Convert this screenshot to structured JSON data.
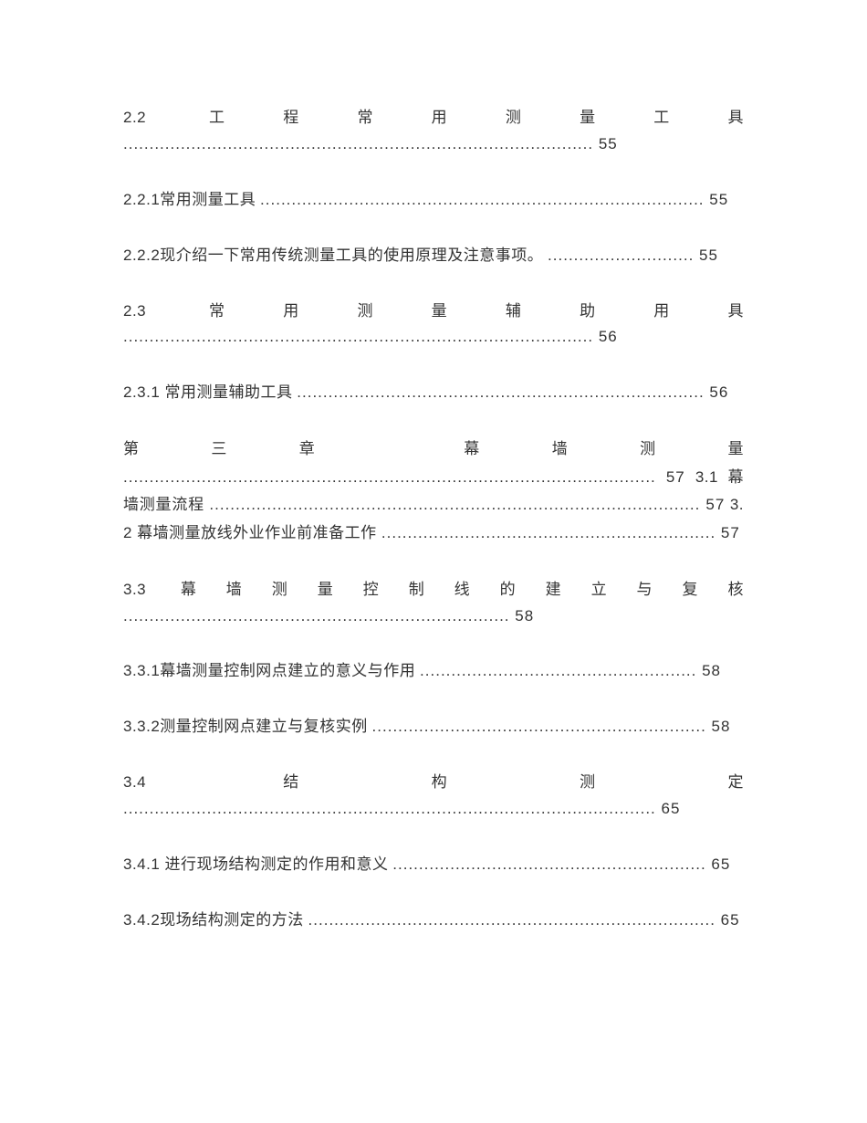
{
  "entries": [
    {
      "title": "2.2 工程常用测量工具",
      "leaders": "..........................................................................................",
      "page": "55"
    },
    {
      "title": "2.2.1常用测量工具",
      "leaders": ".....................................................................................",
      "page": "55"
    },
    {
      "title": "2.2.2现介绍一下常用传统测量工具的使用原理及注意事项。",
      "leaders": "............................",
      "page": "55"
    },
    {
      "title": "2.3 常用测量辅助用具",
      "leaders": "..........................................................................................",
      "page": "56"
    },
    {
      "title": "2.3.1 常用测量辅助工具",
      "leaders": "..............................................................................",
      "page": "56"
    }
  ],
  "combo": {
    "line1_title": "第三章  幕墙测量 ",
    "line1_leaders": "......................................................................................................",
    "line1_page": "57",
    "line2_title": "3.1 幕墙测量流程 ",
    "line2_leaders": "..............................................................................................",
    "line2_page": "57",
    "line2_tail": " 3.2 幕墙测量放线外业作业前准备工作 ",
    "line3_leaders": "................................................................",
    "line3_page": "57"
  },
  "entries2": [
    {
      "title": "3.3 幕墙测量控制线的建立与复核",
      "leaders": "..........................................................................",
      "page": "58"
    },
    {
      "title": "3.3.1幕墙测量控制网点建立的意义与作用",
      "leaders": ".....................................................",
      "page": " 58"
    },
    {
      "title": "3.3.2测量控制网点建立与复核实例",
      "leaders": "................................................................",
      "page": "58"
    },
    {
      "title": "3.4 结构测定",
      "leaders": "......................................................................................................",
      "page": "65"
    },
    {
      "title": "3.4.1 进行现场结构测定的作用和意义",
      "leaders": "............................................................",
      "page": "65"
    },
    {
      "title": "3.4.2现场结构测定的方法",
      "leaders": "..............................................................................",
      "page": "65"
    }
  ],
  "style": {
    "text_color": "#333333",
    "background_color": "#ffffff",
    "font_size_pt": 12,
    "font_family": "Microsoft YaHei"
  }
}
